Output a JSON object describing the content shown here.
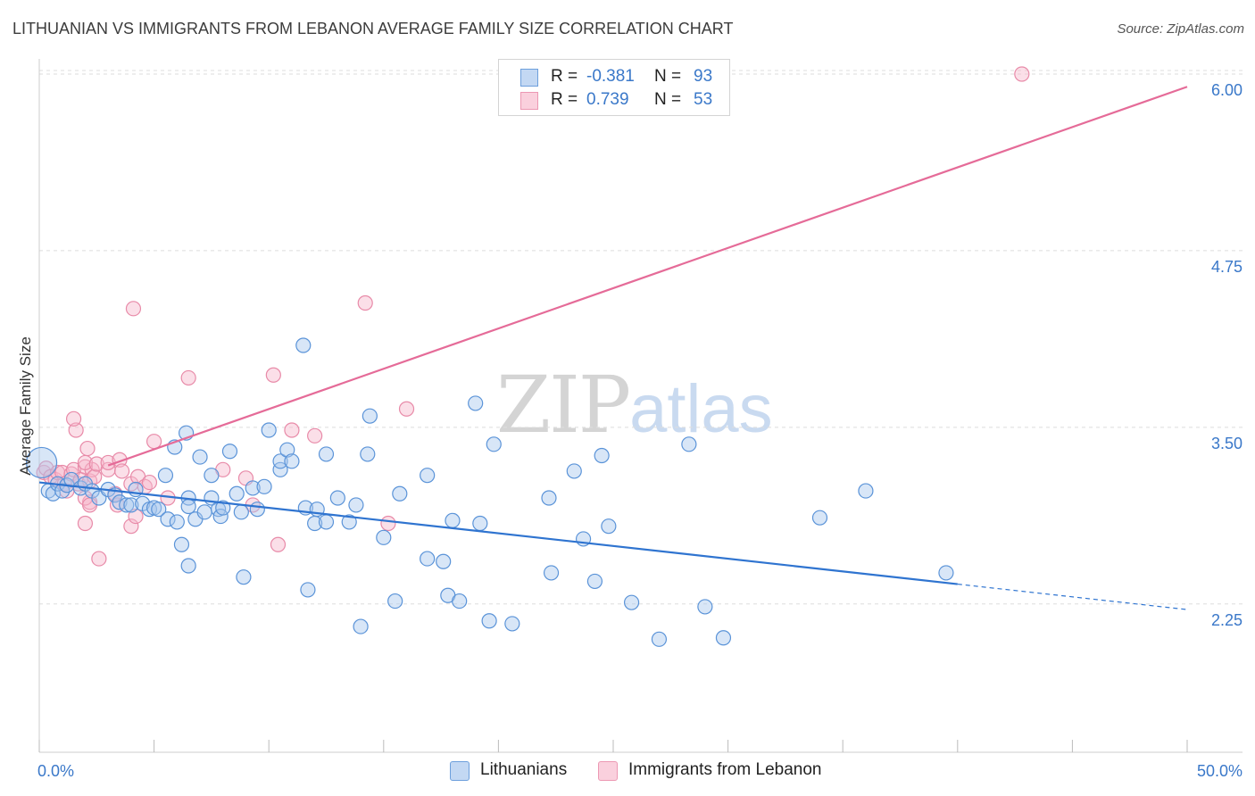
{
  "header": {
    "title": "LITHUANIAN VS IMMIGRANTS FROM LEBANON AVERAGE FAMILY SIZE CORRELATION CHART",
    "source": "Source: ZipAtlas.com"
  },
  "watermark": {
    "zip": "ZIP",
    "atlas": "atlas"
  },
  "legend": {
    "rows": [
      {
        "r_label": "R =",
        "r_value": "-0.381",
        "n_label": "N =",
        "n_value": "93",
        "color": "#a9c7ee"
      },
      {
        "r_label": "R =",
        "r_value": "0.739",
        "n_label": "N =",
        "n_value": "53",
        "color": "#f6b8cb"
      }
    ]
  },
  "bottom_legend": {
    "lithuanians": "Lithuanians",
    "lebanon": "Immigrants from Lebanon"
  },
  "colors": {
    "blue_fill": "#a9c7ee",
    "blue_stroke": "#5a93d8",
    "blue_line": "#2f74d0",
    "pink_fill": "#f6b8cb",
    "pink_stroke": "#e88aa8",
    "pink_line": "#e56b98",
    "tick_text": "#3a78c9",
    "grid": "#dddddd"
  },
  "chart_data": {
    "type": "scatter",
    "title": "LITHUANIAN VS IMMIGRANTS FROM LEBANON AVERAGE FAMILY SIZE CORRELATION CHART",
    "ylabel": "Average Family Size",
    "xlabel": "",
    "x_tick_labels": [
      "0.0%",
      "50.0%"
    ],
    "y_tick_labels": [
      "2.25",
      "3.50",
      "4.75",
      "6.00"
    ],
    "y_ticks": [
      2.25,
      3.5,
      4.75,
      6.0
    ],
    "xlim": [
      0,
      50
    ],
    "ylim": [
      1.2,
      6.12
    ],
    "grid": true,
    "legend_position": "top-center",
    "series": [
      {
        "name": "Lithuanians",
        "r": -0.381,
        "n": 93,
        "trend": {
          "x0": 0,
          "y0": 3.11,
          "x1": 40,
          "y1": 2.39,
          "dash_to": 50
        },
        "points": [
          [
            0.1,
            3.25
          ],
          [
            0.4,
            3.05
          ],
          [
            0.6,
            3.03
          ],
          [
            0.8,
            3.1
          ],
          [
            1.0,
            3.05
          ],
          [
            1.2,
            3.09
          ],
          [
            1.4,
            3.13
          ],
          [
            1.8,
            3.07
          ],
          [
            2.0,
            3.1
          ],
          [
            2.3,
            3.05
          ],
          [
            2.6,
            3.0
          ],
          [
            3.0,
            3.06
          ],
          [
            3.3,
            3.02
          ],
          [
            3.5,
            2.97
          ],
          [
            3.8,
            2.95
          ],
          [
            4.0,
            2.95
          ],
          [
            4.2,
            3.06
          ],
          [
            4.5,
            2.96
          ],
          [
            4.8,
            2.92
          ],
          [
            5.0,
            2.93
          ],
          [
            5.2,
            2.92
          ],
          [
            5.5,
            3.16
          ],
          [
            5.6,
            2.85
          ],
          [
            5.9,
            3.36
          ],
          [
            6.0,
            2.83
          ],
          [
            6.2,
            2.67
          ],
          [
            6.4,
            3.46
          ],
          [
            6.5,
            2.52
          ],
          [
            6.5,
            3.0
          ],
          [
            6.5,
            2.94
          ],
          [
            6.8,
            2.85
          ],
          [
            7.0,
            3.29
          ],
          [
            7.2,
            2.9
          ],
          [
            7.5,
            3.16
          ],
          [
            7.5,
            3.0
          ],
          [
            7.8,
            2.92
          ],
          [
            7.9,
            2.87
          ],
          [
            8.0,
            2.93
          ],
          [
            8.3,
            3.33
          ],
          [
            8.6,
            3.03
          ],
          [
            8.8,
            2.9
          ],
          [
            8.9,
            2.44
          ],
          [
            9.3,
            3.07
          ],
          [
            9.5,
            2.92
          ],
          [
            9.8,
            3.08
          ],
          [
            10.0,
            3.48
          ],
          [
            10.5,
            3.2
          ],
          [
            10.5,
            3.26
          ],
          [
            10.8,
            3.34
          ],
          [
            11.0,
            3.26
          ],
          [
            11.5,
            4.08
          ],
          [
            11.6,
            2.93
          ],
          [
            11.7,
            2.35
          ],
          [
            12.0,
            2.82
          ],
          [
            12.1,
            2.92
          ],
          [
            12.5,
            3.31
          ],
          [
            12.5,
            2.83
          ],
          [
            13.0,
            3.0
          ],
          [
            13.5,
            2.83
          ],
          [
            13.8,
            2.95
          ],
          [
            14.0,
            2.09
          ],
          [
            14.3,
            3.31
          ],
          [
            14.4,
            3.58
          ],
          [
            15.0,
            2.72
          ],
          [
            15.5,
            2.27
          ],
          [
            15.7,
            3.03
          ],
          [
            16.9,
            2.57
          ],
          [
            16.9,
            3.16
          ],
          [
            17.6,
            2.55
          ],
          [
            17.8,
            2.31
          ],
          [
            18.0,
            2.84
          ],
          [
            18.3,
            2.27
          ],
          [
            19.0,
            3.67
          ],
          [
            19.2,
            2.82
          ],
          [
            19.6,
            2.13
          ],
          [
            19.8,
            3.38
          ],
          [
            20.6,
            2.11
          ],
          [
            22.2,
            3.0
          ],
          [
            22.3,
            2.47
          ],
          [
            23.3,
            3.19
          ],
          [
            23.7,
            2.71
          ],
          [
            24.2,
            2.41
          ],
          [
            24.5,
            3.3
          ],
          [
            24.8,
            2.8
          ],
          [
            25.8,
            2.26
          ],
          [
            27.0,
            2.0
          ],
          [
            28.3,
            3.38
          ],
          [
            29.0,
            2.23
          ],
          [
            29.8,
            2.01
          ],
          [
            34.0,
            2.86
          ],
          [
            36.0,
            3.05
          ],
          [
            39.5,
            2.47
          ]
        ]
      },
      {
        "name": "Immigrants from Lebanon",
        "r": 0.739,
        "n": 53,
        "trend": {
          "x0": 3.0,
          "y0": 3.23,
          "x1": 50,
          "y1": 5.91
        },
        "points": [
          [
            0.2,
            3.18
          ],
          [
            0.3,
            3.21
          ],
          [
            0.5,
            3.15
          ],
          [
            0.7,
            3.13
          ],
          [
            0.8,
            3.18
          ],
          [
            1.0,
            3.18
          ],
          [
            1.1,
            3.1
          ],
          [
            1.2,
            3.05
          ],
          [
            1.4,
            3.17
          ],
          [
            1.5,
            3.2
          ],
          [
            1.7,
            3.1
          ],
          [
            1.8,
            3.13
          ],
          [
            2.0,
            3.22
          ],
          [
            2.1,
            3.35
          ],
          [
            2.2,
            3.12
          ],
          [
            2.3,
            3.2
          ],
          [
            2.0,
            3.25
          ],
          [
            2.2,
            2.97
          ],
          [
            2.4,
            3.15
          ],
          [
            2.0,
            3.0
          ],
          [
            1.6,
            3.48
          ],
          [
            1.5,
            3.56
          ],
          [
            2.0,
            2.82
          ],
          [
            2.2,
            2.95
          ],
          [
            2.5,
            3.24
          ],
          [
            2.6,
            2.57
          ],
          [
            3.0,
            3.2
          ],
          [
            3.0,
            3.25
          ],
          [
            3.3,
            3.03
          ],
          [
            3.4,
            2.95
          ],
          [
            3.5,
            3.27
          ],
          [
            3.6,
            3.19
          ],
          [
            4.0,
            3.1
          ],
          [
            4.0,
            2.8
          ],
          [
            4.2,
            2.87
          ],
          [
            4.3,
            3.15
          ],
          [
            4.6,
            3.08
          ],
          [
            4.8,
            3.11
          ],
          [
            4.1,
            4.34
          ],
          [
            5.0,
            3.4
          ],
          [
            5.6,
            3.0
          ],
          [
            6.5,
            3.85
          ],
          [
            8.0,
            3.2
          ],
          [
            9.0,
            3.14
          ],
          [
            9.3,
            2.95
          ],
          [
            10.2,
            3.87
          ],
          [
            10.4,
            2.67
          ],
          [
            11.0,
            3.48
          ],
          [
            12.0,
            3.44
          ],
          [
            14.2,
            4.38
          ],
          [
            15.2,
            2.82
          ],
          [
            16.0,
            3.63
          ],
          [
            42.8,
            6.0
          ]
        ]
      }
    ]
  }
}
